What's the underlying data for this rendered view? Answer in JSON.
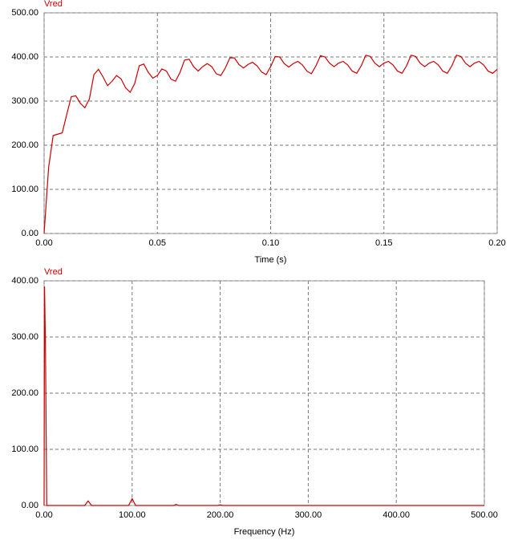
{
  "chart_data": [
    {
      "type": "line",
      "xlabel": "Time (s)",
      "x": [
        0,
        0.002,
        0.004,
        0.006,
        0.008,
        0.01,
        0.012,
        0.014,
        0.016,
        0.018,
        0.02,
        0.022,
        0.024,
        0.026,
        0.028,
        0.03,
        0.032,
        0.034,
        0.036,
        0.038,
        0.04,
        0.042,
        0.044,
        0.046,
        0.048,
        0.05,
        0.052,
        0.054,
        0.056,
        0.058,
        0.06,
        0.062,
        0.064,
        0.066,
        0.068,
        0.07,
        0.072,
        0.074,
        0.076,
        0.078,
        0.08,
        0.082,
        0.084,
        0.086,
        0.088,
        0.09,
        0.092,
        0.094,
        0.096,
        0.098,
        0.1,
        0.102,
        0.104,
        0.106,
        0.108,
        0.11,
        0.112,
        0.114,
        0.116,
        0.118,
        0.12,
        0.122,
        0.124,
        0.126,
        0.128,
        0.13,
        0.132,
        0.134,
        0.136,
        0.138,
        0.14,
        0.142,
        0.144,
        0.146,
        0.148,
        0.15,
        0.152,
        0.154,
        0.156,
        0.158,
        0.16,
        0.162,
        0.164,
        0.166,
        0.168,
        0.17,
        0.172,
        0.174,
        0.176,
        0.178,
        0.18,
        0.182,
        0.184,
        0.186,
        0.188,
        0.19,
        0.192,
        0.194,
        0.196,
        0.198,
        0.2
      ],
      "series": [
        {
          "name": "Vred",
          "color": "#cc0000",
          "values": [
            0,
            150,
            222,
            225,
            228,
            270,
            310,
            312,
            295,
            285,
            305,
            360,
            372,
            355,
            335,
            345,
            358,
            350,
            330,
            320,
            340,
            380,
            384,
            365,
            352,
            358,
            373,
            368,
            350,
            345,
            365,
            393,
            395,
            378,
            368,
            378,
            385,
            378,
            362,
            358,
            375,
            398,
            398,
            383,
            375,
            383,
            388,
            380,
            366,
            360,
            378,
            401,
            400,
            385,
            377,
            385,
            390,
            382,
            368,
            362,
            380,
            403,
            400,
            386,
            378,
            386,
            390,
            382,
            368,
            363,
            380,
            404,
            401,
            386,
            378,
            386,
            390,
            382,
            368,
            363,
            380,
            404,
            401,
            386,
            378,
            386,
            390,
            382,
            368,
            363,
            380,
            404,
            401,
            386,
            378,
            386,
            390,
            382,
            368,
            363,
            372
          ]
        }
      ],
      "xlim": [
        0,
        0.2
      ],
      "xticks": [
        {
          "value": 0,
          "label": "0.00"
        },
        {
          "value": 0.05,
          "label": "0.05"
        },
        {
          "value": 0.1,
          "label": "0.10"
        },
        {
          "value": 0.15,
          "label": "0.15"
        },
        {
          "value": 0.2,
          "label": "0.20"
        }
      ],
      "ylim": [
        0,
        500
      ],
      "yticks": [
        {
          "value": 0,
          "label": "0.00"
        },
        {
          "value": 100,
          "label": "100.00"
        },
        {
          "value": 200,
          "label": "200.00"
        },
        {
          "value": 300,
          "label": "300.00"
        },
        {
          "value": 400,
          "label": "400.00"
        },
        {
          "value": 500,
          "label": "500.00"
        }
      ],
      "grid": true
    },
    {
      "type": "line",
      "xlabel": "Frequency (Hz)",
      "x": [
        0,
        0.5,
        1.5,
        2.5,
        3,
        46,
        50,
        54,
        96,
        100,
        104,
        147,
        150,
        153,
        197,
        200,
        203,
        500
      ],
      "series": [
        {
          "name": "Vred",
          "color": "#cc0000",
          "values": [
            0,
            390,
            290,
            95,
            0,
            0,
            8,
            0,
            0,
            12,
            0,
            0,
            2,
            0,
            0,
            1,
            0,
            0
          ]
        }
      ],
      "xlim": [
        0,
        500
      ],
      "xticks": [
        {
          "value": 0,
          "label": "0.00"
        },
        {
          "value": 100,
          "label": "100.00"
        },
        {
          "value": 200,
          "label": "200.00"
        },
        {
          "value": 300,
          "label": "300.00"
        },
        {
          "value": 400,
          "label": "400.00"
        },
        {
          "value": 500,
          "label": "500.00"
        }
      ],
      "ylim": [
        0,
        400
      ],
      "yticks": [
        {
          "value": 0,
          "label": "0.00"
        },
        {
          "value": 100,
          "label": "100.00"
        },
        {
          "value": 200,
          "label": "200.00"
        },
        {
          "value": 300,
          "label": "300.00"
        },
        {
          "value": 400,
          "label": "400.00"
        }
      ],
      "grid": true
    }
  ]
}
